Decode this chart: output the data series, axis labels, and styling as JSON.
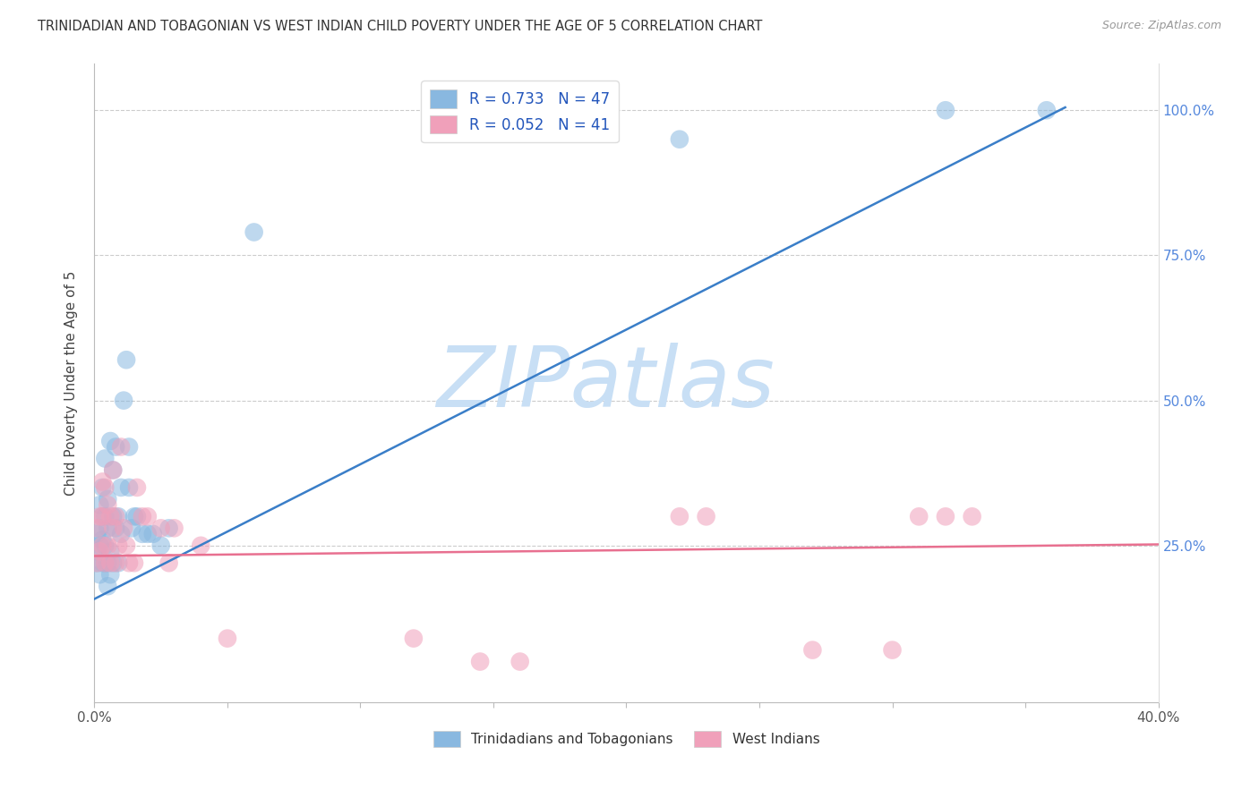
{
  "title": "TRINIDADIAN AND TOBAGONIAN VS WEST INDIAN CHILD POVERTY UNDER THE AGE OF 5 CORRELATION CHART",
  "source": "Source: ZipAtlas.com",
  "ylabel": "Child Poverty Under the Age of 5",
  "xlim": [
    0.0,
    0.4
  ],
  "ylim": [
    -0.02,
    1.08
  ],
  "xticks": [
    0.0,
    0.05,
    0.1,
    0.15,
    0.2,
    0.25,
    0.3,
    0.35,
    0.4
  ],
  "yticks": [
    0.0,
    0.25,
    0.5,
    0.75,
    1.0
  ],
  "legend_labels_bottom": [
    "Trinidadians and Tobagonians",
    "West Indians"
  ],
  "blue_color": "#89b8e0",
  "pink_color": "#f0a0ba",
  "blue_line_color": "#3a7ec8",
  "pink_line_color": "#e87090",
  "watermark": "ZIPatlas",
  "watermark_color": "#ddeeff",
  "blue_line_x": [
    0.0,
    0.365
  ],
  "blue_line_y": [
    0.158,
    1.005
  ],
  "pink_line_x": [
    0.0,
    0.4
  ],
  "pink_line_y": [
    0.232,
    0.252
  ],
  "blue_scatter_x": [
    0.001,
    0.001,
    0.001,
    0.002,
    0.002,
    0.002,
    0.002,
    0.003,
    0.003,
    0.003,
    0.003,
    0.004,
    0.004,
    0.004,
    0.004,
    0.005,
    0.005,
    0.005,
    0.005,
    0.006,
    0.006,
    0.006,
    0.007,
    0.007,
    0.007,
    0.008,
    0.008,
    0.009,
    0.009,
    0.01,
    0.01,
    0.011,
    0.012,
    0.013,
    0.013,
    0.014,
    0.015,
    0.016,
    0.018,
    0.02,
    0.022,
    0.025,
    0.028,
    0.06,
    0.22,
    0.32,
    0.358
  ],
  "blue_scatter_y": [
    0.22,
    0.24,
    0.27,
    0.2,
    0.25,
    0.28,
    0.32,
    0.22,
    0.26,
    0.3,
    0.35,
    0.22,
    0.25,
    0.3,
    0.4,
    0.18,
    0.22,
    0.28,
    0.33,
    0.2,
    0.24,
    0.43,
    0.22,
    0.3,
    0.38,
    0.28,
    0.42,
    0.22,
    0.3,
    0.27,
    0.35,
    0.5,
    0.57,
    0.35,
    0.42,
    0.28,
    0.3,
    0.3,
    0.27,
    0.27,
    0.27,
    0.25,
    0.28,
    0.79,
    0.95,
    1.0,
    1.0
  ],
  "pink_scatter_x": [
    0.001,
    0.001,
    0.002,
    0.002,
    0.003,
    0.003,
    0.003,
    0.004,
    0.004,
    0.005,
    0.005,
    0.006,
    0.006,
    0.007,
    0.007,
    0.008,
    0.008,
    0.009,
    0.01,
    0.011,
    0.012,
    0.013,
    0.015,
    0.016,
    0.018,
    0.02,
    0.025,
    0.028,
    0.03,
    0.04,
    0.05,
    0.12,
    0.145,
    0.16,
    0.22,
    0.23,
    0.27,
    0.3,
    0.31,
    0.32,
    0.33
  ],
  "pink_scatter_y": [
    0.22,
    0.28,
    0.24,
    0.3,
    0.25,
    0.3,
    0.36,
    0.22,
    0.35,
    0.25,
    0.32,
    0.22,
    0.3,
    0.28,
    0.38,
    0.22,
    0.3,
    0.25,
    0.42,
    0.28,
    0.25,
    0.22,
    0.22,
    0.35,
    0.3,
    0.3,
    0.28,
    0.22,
    0.28,
    0.25,
    0.09,
    0.09,
    0.05,
    0.05,
    0.3,
    0.3,
    0.07,
    0.07,
    0.3,
    0.3,
    0.3
  ]
}
